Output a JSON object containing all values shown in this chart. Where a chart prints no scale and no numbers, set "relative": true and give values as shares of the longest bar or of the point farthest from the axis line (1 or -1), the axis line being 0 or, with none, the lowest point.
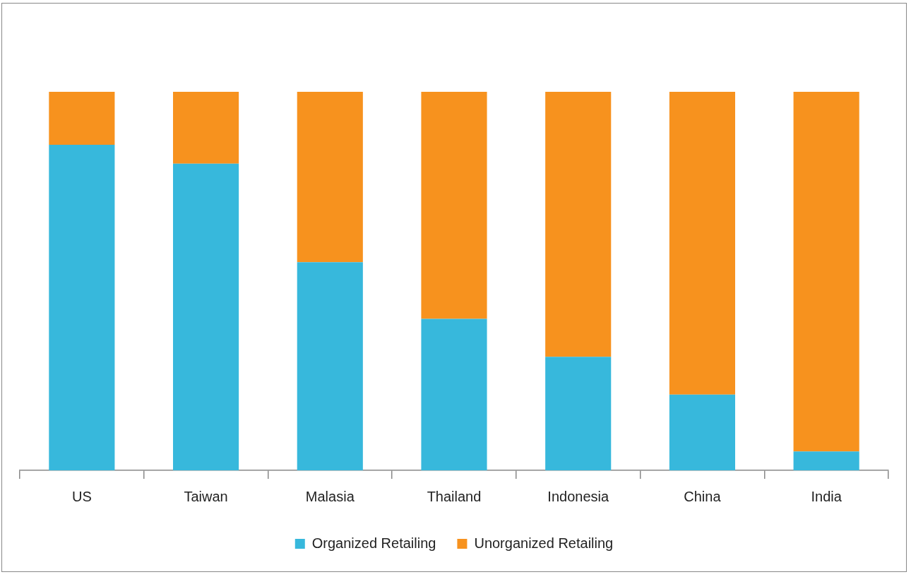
{
  "chart_data": {
    "type": "bar",
    "categories": [
      "US",
      "Taiwan",
      "Malasia",
      "Thailand",
      "Indonesia",
      "China",
      "India"
    ],
    "series": [
      {
        "name": "Organized Retailing",
        "color": "#37b8dc",
        "values": [
          0.86,
          0.81,
          0.55,
          0.4,
          0.3,
          0.2,
          0.05
        ]
      },
      {
        "name": "Unorganized Retailing",
        "color": "#f7921e",
        "values": [
          0.14,
          0.19,
          0.45,
          0.6,
          0.7,
          0.8,
          0.95
        ]
      }
    ],
    "stacked": true,
    "relative": true,
    "legend": "bottom"
  }
}
